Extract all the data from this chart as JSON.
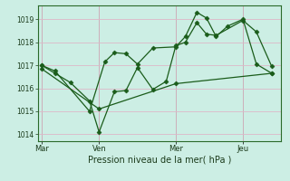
{
  "xlabel": "Pression niveau de la mer( hPa )",
  "bg_color": "#cceee4",
  "grid_color_major": "#ddb8c8",
  "line_color": "#1a5c1a",
  "ylim": [
    1013.7,
    1019.6
  ],
  "yticks": [
    1014,
    1015,
    1016,
    1017,
    1018,
    1019
  ],
  "xtick_labels": [
    "Mar",
    "Ven",
    "Mer",
    "Jeu"
  ],
  "xtick_positions": [
    0.0,
    3.0,
    7.0,
    10.5
  ],
  "vline_positions": [
    0.0,
    3.0,
    7.0,
    10.5
  ],
  "xlim": [
    -0.2,
    12.5
  ],
  "series1_x": [
    0.0,
    0.7,
    2.5,
    3.3,
    3.8,
    4.4,
    5.0,
    5.8,
    7.0,
    7.5,
    8.1,
    8.6,
    9.1,
    9.7,
    10.5,
    11.2,
    12.0
  ],
  "series1_y": [
    1017.0,
    1016.75,
    1015.0,
    1017.15,
    1017.55,
    1017.5,
    1017.05,
    1017.75,
    1017.8,
    1018.25,
    1019.3,
    1019.05,
    1018.25,
    1018.7,
    1019.0,
    1017.05,
    1016.65
  ],
  "series2_x": [
    0.0,
    0.7,
    1.5,
    2.5,
    3.0,
    3.8,
    4.4,
    5.0,
    5.8,
    6.5,
    7.0,
    7.5,
    8.1,
    8.6,
    9.1,
    10.5,
    11.2,
    12.0
  ],
  "series2_y": [
    1017.0,
    1016.65,
    1016.25,
    1015.45,
    1014.1,
    1015.85,
    1015.9,
    1016.9,
    1015.95,
    1016.3,
    1017.85,
    1018.0,
    1018.85,
    1018.35,
    1018.3,
    1018.95,
    1018.45,
    1016.95
  ],
  "series3_x": [
    0.0,
    3.0,
    7.0,
    12.0
  ],
  "series3_y": [
    1016.85,
    1015.1,
    1016.2,
    1016.65
  ],
  "num_x_total": 12.5
}
